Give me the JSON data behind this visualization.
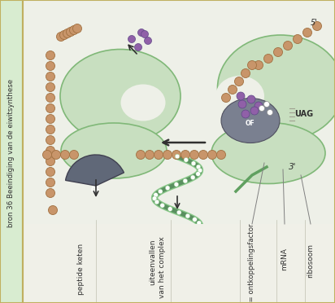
{
  "bg_color": "#eef0e8",
  "ribosome_color": "#c8dfc0",
  "ribosome_outline": "#80b878",
  "bead_color": "#c8956a",
  "bead_outline": "#a07040",
  "purple_color": "#9060a8",
  "gray_color": "#7a8090",
  "green_chain_color": "#5a9060",
  "green_chain_light": "#88c888",
  "arrow_color": "#303030",
  "text_color": "#303030",
  "label_bg": "#d8ecd0",
  "label_border": "#c0b060",
  "label_left_title": "bron 36 Beeindiging van de eiwitsynthese",
  "label_peptide": "peptide keten",
  "label_uiteenvallen1": "uiteenvallen",
  "label_uiteenvallen2": "van het complex",
  "label_OF_factor": "OF = ontkoppelingsfactor",
  "label_mRNA": "mRNA",
  "label_ribosoom": "ribosoom",
  "label_UAG": "UAG",
  "label_3prime": "3'",
  "label_5prime": "5'",
  "label_OF_small": "OF"
}
